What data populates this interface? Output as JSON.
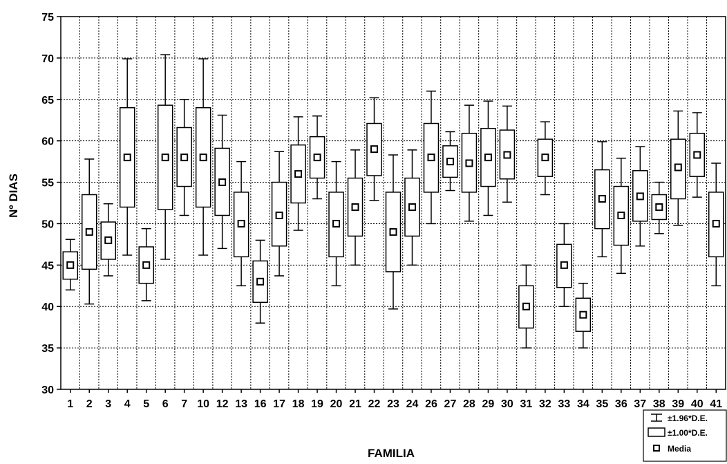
{
  "chart_data": {
    "type": "boxplot",
    "xlabel": "FAMILIA",
    "ylabel": "Nº DIAS",
    "ylim": [
      30,
      75
    ],
    "yticks": [
      30,
      35,
      40,
      45,
      50,
      55,
      60,
      65,
      70,
      75
    ],
    "grid": true,
    "legend_position": "bottom-right",
    "legend": [
      "±1.96*D.E.",
      "±1.00*D.E.",
      "Media"
    ],
    "categories": [
      "1",
      "2",
      "3",
      "4",
      "5",
      "6",
      "7",
      "10",
      "12",
      "13",
      "16",
      "17",
      "18",
      "19",
      "20",
      "21",
      "22",
      "23",
      "24",
      "26",
      "27",
      "28",
      "29",
      "30",
      "31",
      "32",
      "33",
      "34",
      "35",
      "36",
      "37",
      "38",
      "39",
      "40",
      "41"
    ],
    "mean": [
      45,
      49,
      48,
      58,
      45,
      58,
      58,
      58,
      55,
      50,
      43,
      51,
      56,
      58,
      50,
      52,
      59,
      49,
      52,
      58,
      57.5,
      57.3,
      58,
      58.3,
      40,
      58,
      45,
      39,
      53,
      51,
      53.3,
      52,
      56.8,
      58.3,
      50
    ],
    "sd_lower": [
      43.3,
      44.5,
      45.7,
      52,
      42.8,
      51.7,
      54.5,
      52,
      51,
      46,
      40.5,
      47.3,
      52.5,
      55.5,
      46,
      48.5,
      55.8,
      44.2,
      48.5,
      53.8,
      55.6,
      53.8,
      54.5,
      55.4,
      37.4,
      55.7,
      42.3,
      37,
      49.4,
      47.4,
      50.3,
      50.5,
      53,
      55.7,
      46
    ],
    "sd_upper": [
      46.6,
      53.5,
      50.2,
      64,
      47.2,
      64.3,
      61.6,
      64,
      59.1,
      53.8,
      45.5,
      55,
      59.5,
      60.5,
      53.8,
      55.5,
      62.1,
      53.8,
      55.5,
      62.1,
      59.4,
      60.9,
      61.5,
      61.3,
      42.5,
      60.2,
      47.5,
      41,
      56.5,
      54.5,
      56.4,
      53.5,
      60.2,
      60.9,
      53.8
    ],
    "ci_lower": [
      42,
      40.3,
      43.7,
      46.2,
      40.7,
      45.7,
      51,
      46.2,
      47,
      42.5,
      38,
      43.7,
      49.2,
      53,
      42.5,
      45,
      52.8,
      39.7,
      45,
      50,
      54,
      50.3,
      51,
      52.6,
      35,
      53.5,
      40,
      35,
      46,
      44,
      47.3,
      48.8,
      49.8,
      53.2,
      42.5
    ],
    "ci_upper": [
      48.1,
      57.8,
      52.4,
      69.9,
      49.4,
      70.4,
      65,
      69.9,
      63.1,
      57.5,
      48,
      58.7,
      62.9,
      63,
      57.5,
      58.9,
      65.2,
      58.3,
      58.9,
      66,
      61.1,
      64.3,
      64.8,
      64.2,
      45,
      62.3,
      50,
      42.8,
      59.9,
      57.9,
      59.3,
      55,
      63.6,
      63.4,
      57.3
    ]
  },
  "colors": {
    "box_fill": "#ffffff",
    "box_stroke": "#000000",
    "grid": "#000000",
    "background": "#ffffff"
  }
}
